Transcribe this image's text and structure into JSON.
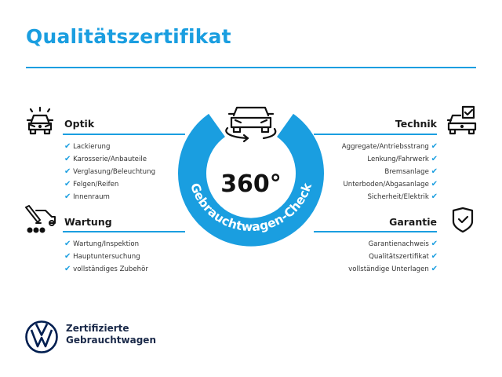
{
  "title": "Qualitätszertifikat",
  "accent_color": "#1a9ee0",
  "center": {
    "value": "360°",
    "ring_text": "Gebrauchtwagen-Check",
    "icon": "car-360-rotate-icon"
  },
  "sections": {
    "optik": {
      "heading": "Optik",
      "icon": "car-lights-icon",
      "items": [
        "Lackierung",
        "Karosserie/Anbauteile",
        "Verglasung/Beleuchtung",
        "Felgen/Reifen",
        "Innenraum"
      ]
    },
    "wartung": {
      "heading": "Wartung",
      "icon": "service-tools-icon",
      "items": [
        "Wartung/Inspektion",
        "Hauptuntersuchung",
        "vollständiges Zubehör"
      ]
    },
    "technik": {
      "heading": "Technik",
      "icon": "car-checkbox-icon",
      "items": [
        "Aggregate/Antriebsstrang",
        "Lenkung/Fahrwerk",
        "Bremsanlage",
        "Unterboden/Abgasanlage",
        "Sicherheit/Elektrik"
      ]
    },
    "garantie": {
      "heading": "Garantie",
      "icon": "shield-check-icon",
      "items": [
        "Garantienachweis",
        "Qualitätszertifikat",
        "vollständige Unterlagen"
      ]
    }
  },
  "check_glyph": "✔",
  "brand": {
    "line1": "Zertifizierte",
    "line2": "Gebrauchtwagen",
    "logo": "vw-logo"
  }
}
